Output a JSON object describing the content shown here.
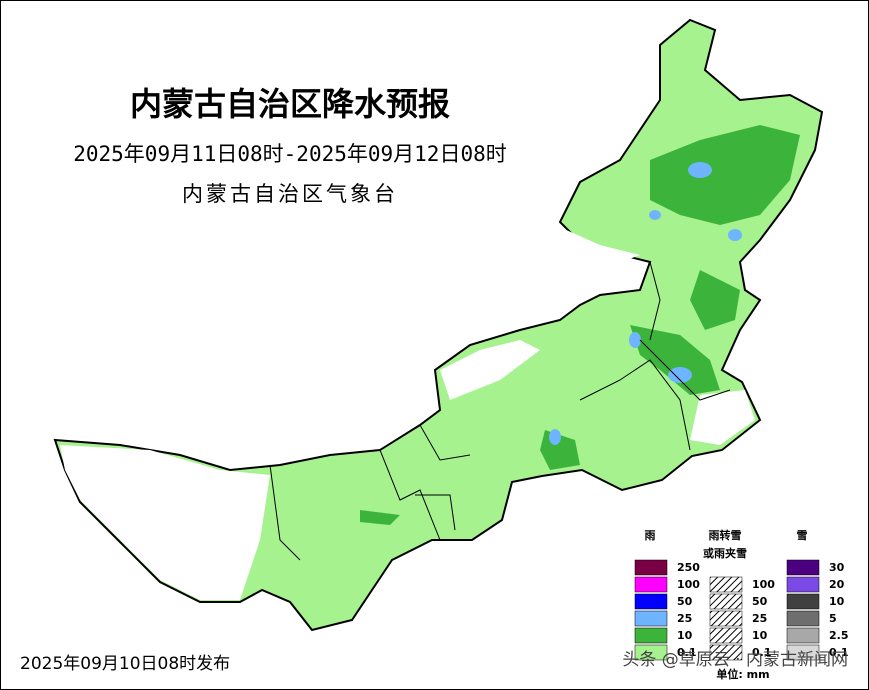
{
  "header": {
    "title": "内蒙古自治区降水预报",
    "period": "2025年09月11日08时-2025年09月12日08时",
    "issuer": "内蒙古自治区气象台"
  },
  "legend": {
    "columns": [
      {
        "title": "雨",
        "subtitle": null,
        "items": [
          {
            "label": 250,
            "color": "#7a0046"
          },
          {
            "label": 100,
            "color": "#ff00ff"
          },
          {
            "label": 50,
            "color": "#0000ff"
          },
          {
            "label": 25,
            "color": "#6eb4ff"
          },
          {
            "label": 10,
            "color": "#3cb43c"
          },
          {
            "label": 0.1,
            "color": "#a6f28f"
          }
        ]
      },
      {
        "title": "雨转雪",
        "subtitle": "或雨夹雪",
        "items": [
          {
            "label": 100,
            "color": "#ff00ff"
          },
          {
            "label": 50,
            "color": "#0000ff"
          },
          {
            "label": 25,
            "color": "#6eb4ff"
          },
          {
            "label": 10,
            "color": "#3cb43c"
          },
          {
            "label": 0.1,
            "color": "#a6f28f"
          }
        ]
      },
      {
        "title": "雪",
        "subtitle": null,
        "items": [
          {
            "label": 30,
            "color": "#4b0082"
          },
          {
            "label": 20,
            "color": "#7b4ae6"
          },
          {
            "label": 10,
            "color": "#404040"
          },
          {
            "label": 5,
            "color": "#6e6e6e"
          },
          {
            "label": 2.5,
            "color": "#a8a8a8"
          },
          {
            "label": 0.1,
            "color": "#d8d8d8"
          }
        ]
      }
    ],
    "unit": "单位: mm"
  },
  "footer": {
    "release": "2025年09月10日08时发布",
    "watermark": "头条 @草原云 · 内蒙古新闻网"
  }
}
